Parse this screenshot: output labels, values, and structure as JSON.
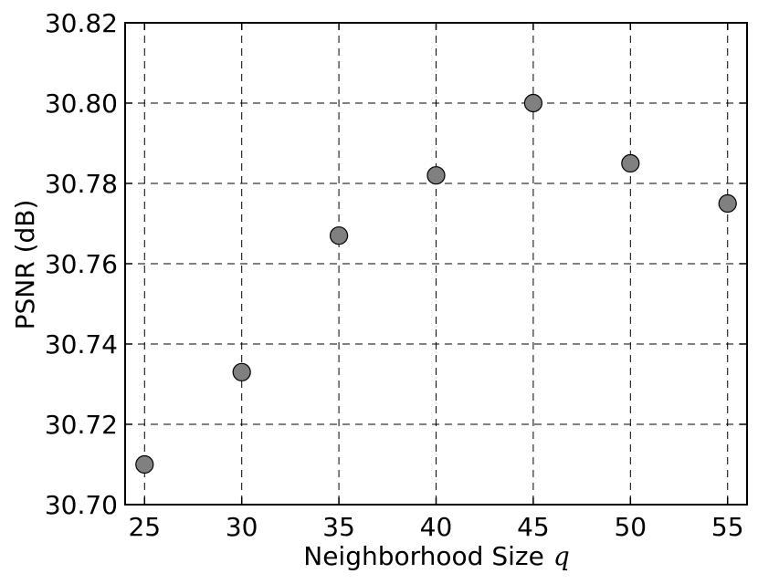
{
  "chart_data": {
    "type": "scatter",
    "title": "",
    "xlabel": "Neighborhood Size",
    "xlabel_var": "q",
    "ylabel": "PSNR (dB)",
    "xlim": [
      24,
      56
    ],
    "ylim": [
      30.7,
      30.82
    ],
    "x_ticks": [
      25,
      30,
      35,
      40,
      45,
      50,
      55
    ],
    "x_tick_labels": [
      "25",
      "30",
      "35",
      "40",
      "45",
      "50",
      "55"
    ],
    "y_ticks": [
      30.7,
      30.72,
      30.74,
      30.76,
      30.78,
      30.8,
      30.82
    ],
    "y_tick_labels": [
      "30.70",
      "30.72",
      "30.74",
      "30.76",
      "30.78",
      "30.80",
      "30.82"
    ],
    "grid": true,
    "grid_style": "dashed",
    "series": [
      {
        "x": [
          25,
          30,
          35,
          40,
          45,
          50,
          55
        ],
        "y": [
          30.71,
          30.733,
          30.767,
          30.782,
          30.8,
          30.785,
          30.775
        ],
        "marker": "circle",
        "color": "#808080",
        "edge_color": "#000000"
      }
    ]
  }
}
